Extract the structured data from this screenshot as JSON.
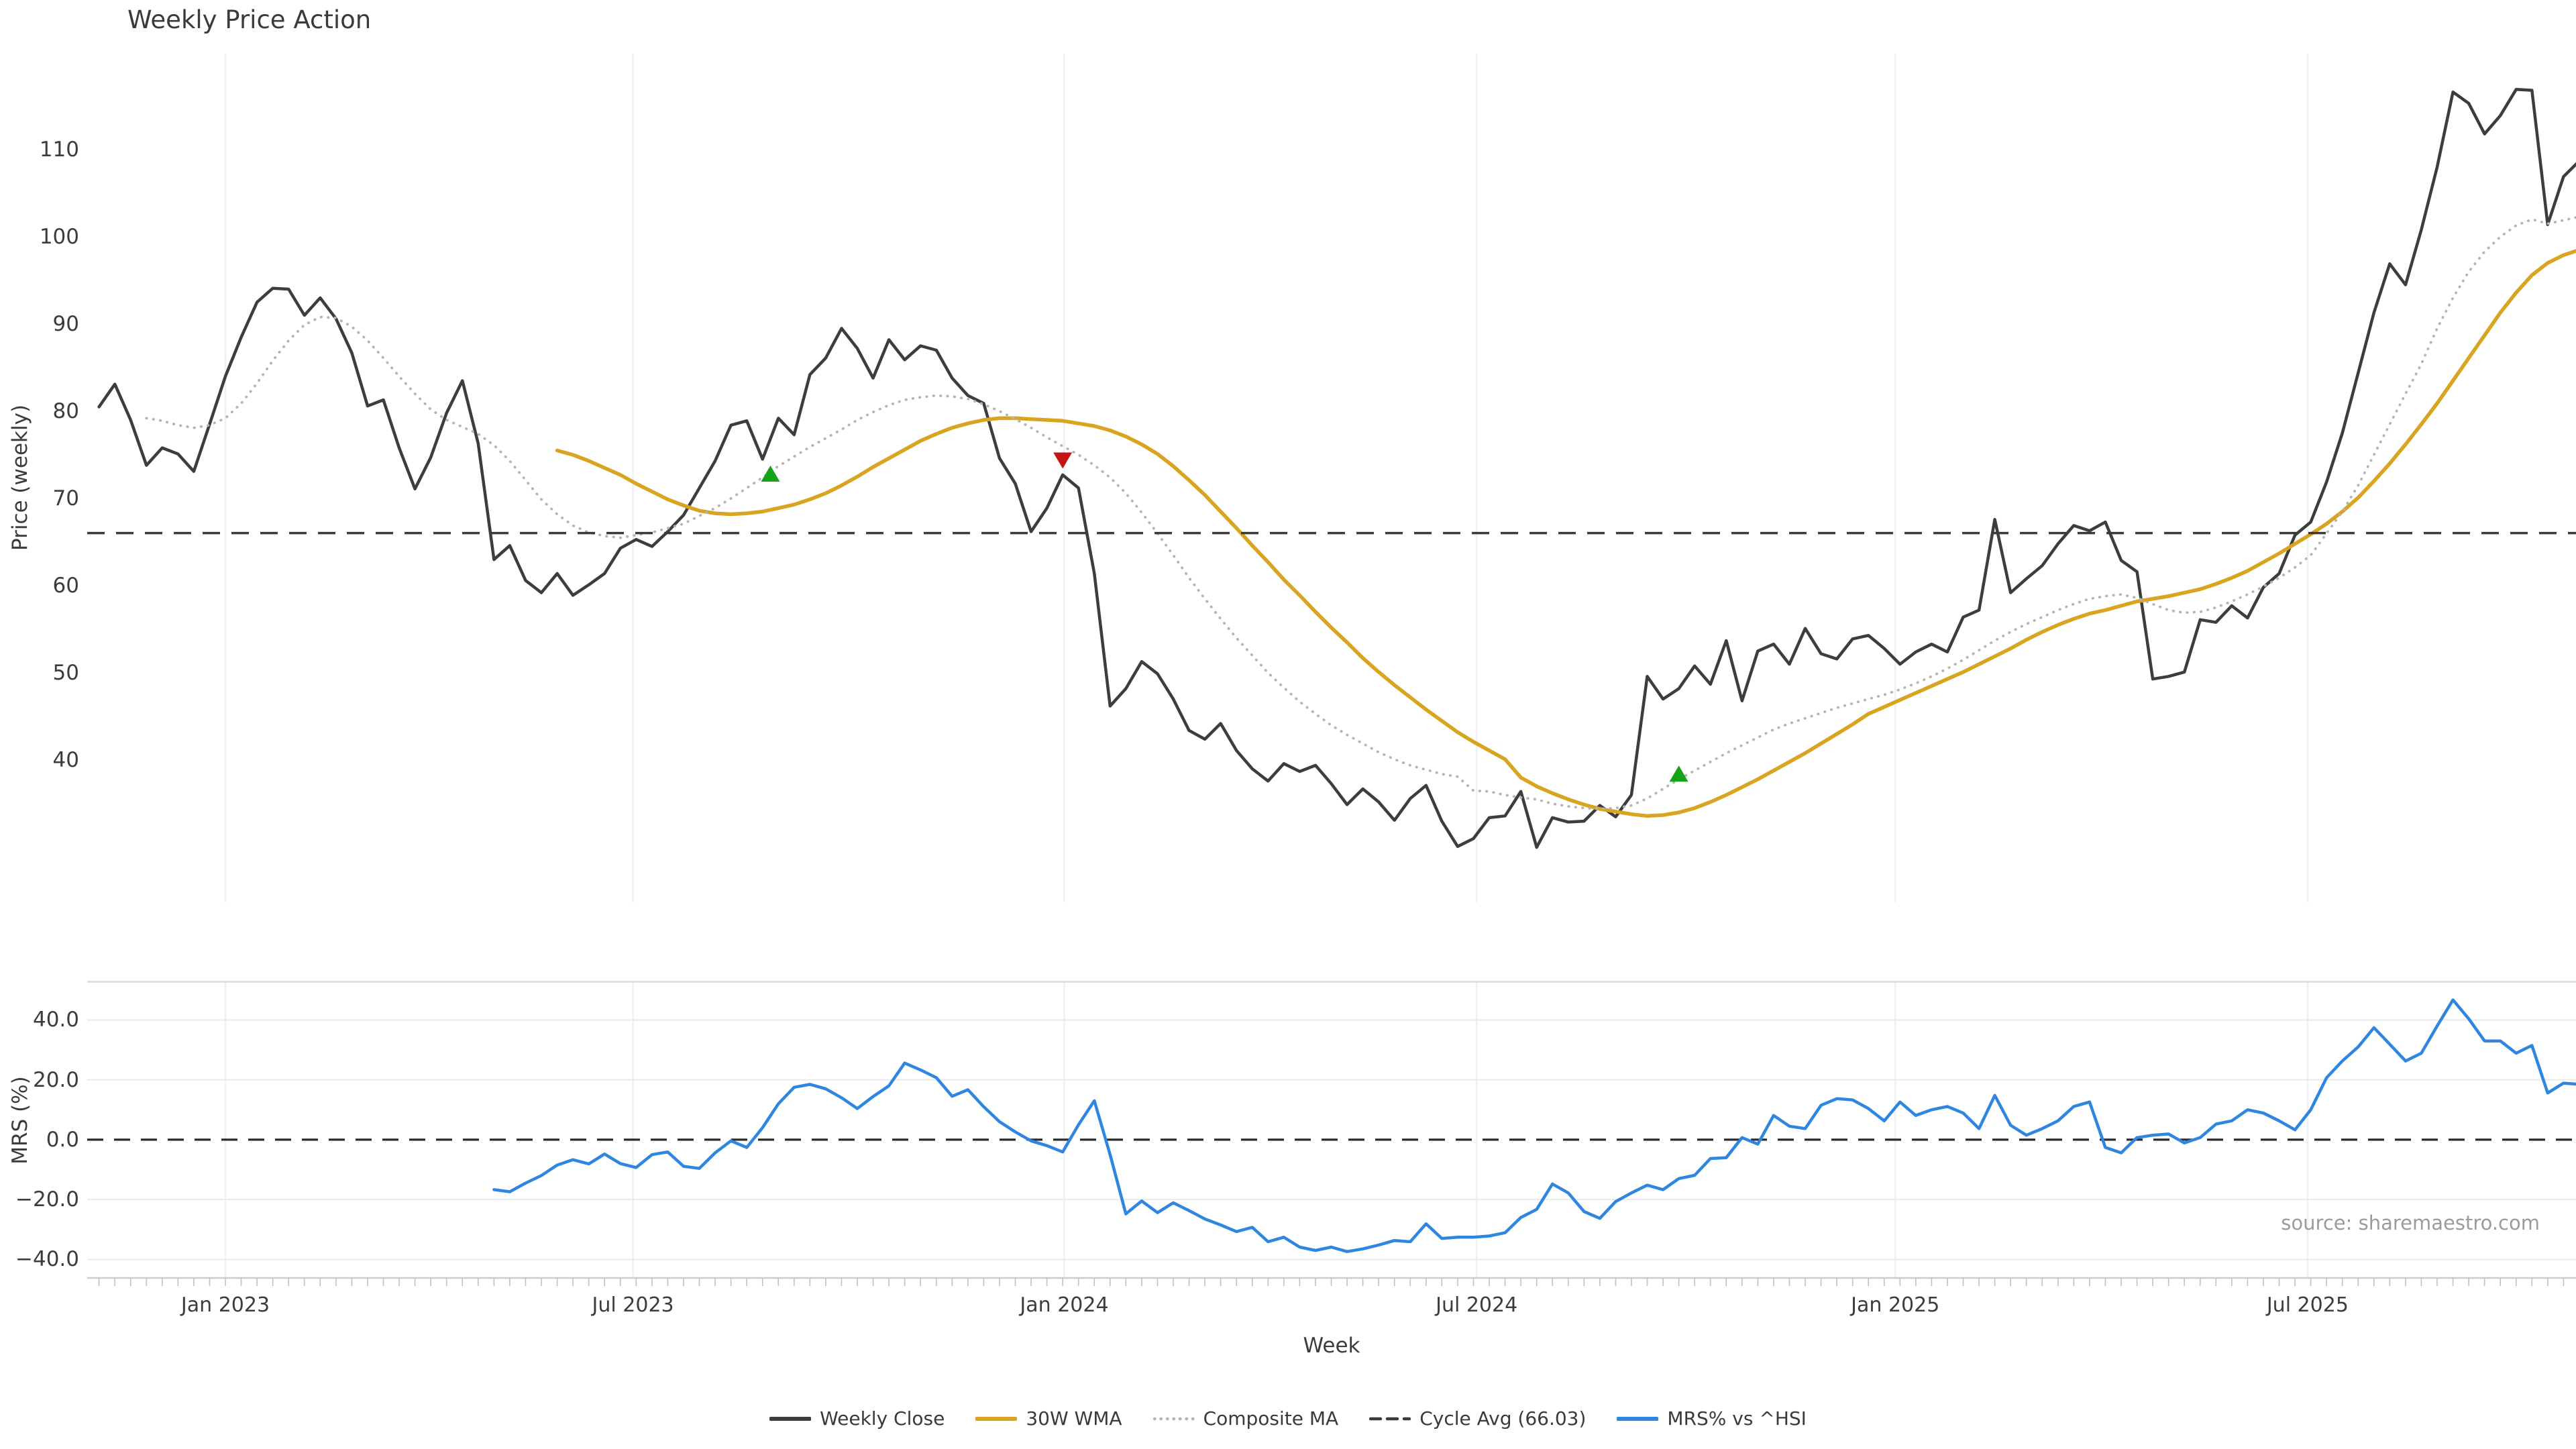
{
  "title": "Weekly Price Action",
  "source_text": "source: sharemaestro.com",
  "chart_data": {
    "type": "line",
    "title": "Weekly Price Action",
    "xlabel": "Week",
    "x_unit": "weekly",
    "x_start_date": "2022-11-07",
    "x_interval_days": 7,
    "n_weeks": 158,
    "grid": "vertical-light",
    "legend_position": "bottom-center",
    "xticks": [
      {
        "label": "Jan 2023",
        "index": 8.0
      },
      {
        "label": "Jul 2023",
        "index": 33.8
      },
      {
        "label": "Jan 2024",
        "index": 61.1
      },
      {
        "label": "Jul 2024",
        "index": 87.2
      },
      {
        "label": "Jan 2025",
        "index": 113.7
      },
      {
        "label": "Jul 2025",
        "index": 139.8
      }
    ],
    "panels": [
      {
        "ylabel": "Price (weekly)",
        "ylim": [
          23.7,
          121.0
        ],
        "yticks": [
          {
            "v": 110,
            "label": "110"
          },
          {
            "v": 100,
            "label": "100"
          },
          {
            "v": 90,
            "label": "90"
          },
          {
            "v": 80,
            "label": "80"
          },
          {
            "v": 70,
            "label": "70"
          },
          {
            "v": 60,
            "label": "60"
          },
          {
            "v": 50,
            "label": "50"
          },
          {
            "v": 40,
            "label": "40"
          }
        ],
        "ygrid": [],
        "series": [
          {
            "name": "Weekly Close",
            "color": "#3d3d3d",
            "line_style": "solid",
            "line_width": 4.5,
            "start_index": 0,
            "values": [
              80.5,
              83.1,
              79.0,
              73.8,
              75.8,
              75.1,
              73.1,
              78.5,
              84.0,
              88.5,
              92.5,
              94.1,
              94.0,
              91.0,
              93.0,
              90.6,
              86.7,
              80.6,
              81.3,
              75.8,
              71.1,
              74.7,
              79.8,
              83.5,
              76.3,
              63.0,
              64.6,
              60.6,
              59.2,
              61.4,
              58.9,
              60.1,
              61.4,
              64.3,
              65.3,
              64.5,
              66.2,
              68.1,
              71.2,
              74.3,
              78.4,
              78.9,
              74.5,
              79.2,
              77.3,
              84.2,
              86.1,
              89.5,
              87.2,
              83.8,
              88.2,
              85.9,
              87.5,
              87.0,
              83.8,
              81.8,
              80.9,
              74.6,
              71.7,
              66.2,
              68.9,
              72.7,
              71.2,
              61.4,
              46.2,
              48.2,
              51.3,
              49.9,
              47.0,
              43.4,
              42.4,
              44.2,
              41.1,
              39.0,
              37.6,
              39.6,
              38.7,
              39.4,
              37.3,
              34.9,
              36.7,
              35.2,
              33.1,
              35.6,
              37.1,
              33.0,
              30.1,
              31.0,
              33.4,
              33.6,
              36.4,
              30.0,
              33.4,
              32.9,
              33.0,
              34.8,
              33.5,
              36.0,
              49.6,
              47.0,
              48.2,
              50.8,
              48.7,
              53.7,
              46.8,
              52.5,
              53.3,
              51.0,
              55.1,
              52.2,
              51.6,
              53.9,
              54.3,
              52.8,
              51.0,
              52.4,
              53.3,
              52.4,
              56.4,
              57.2,
              67.6,
              59.2,
              60.8,
              62.3,
              64.8,
              66.9,
              66.3,
              67.3,
              62.9,
              61.6,
              49.3,
              49.6,
              50.1,
              56.1,
              55.8,
              57.7,
              56.3,
              59.8,
              61.4,
              65.8,
              67.3,
              71.9,
              77.5,
              84.4,
              91.3,
              96.9,
              94.5,
              100.8,
              108.0,
              116.6,
              115.3,
              111.8,
              113.9,
              116.9,
              116.8,
              101.4,
              106.9,
              108.7
            ]
          },
          {
            "name": "30W WMA",
            "color": "#d9a420",
            "line_style": "solid",
            "line_width": 5.5,
            "start_index": 29,
            "values": [
              75.5,
              75.0,
              74.3,
              73.5,
              72.7,
              71.7,
              70.8,
              69.9,
              69.2,
              68.6,
              68.3,
              68.2,
              68.3,
              68.5,
              68.9,
              69.3,
              69.9,
              70.6,
              71.5,
              72.5,
              73.6,
              74.6,
              75.6,
              76.6,
              77.4,
              78.1,
              78.6,
              79.0,
              79.2,
              79.2,
              79.1,
              79.0,
              78.9,
              78.6,
              78.3,
              77.8,
              77.1,
              76.2,
              75.1,
              73.7,
              72.1,
              70.4,
              68.5,
              66.6,
              64.6,
              62.7,
              60.7,
              58.9,
              57.0,
              55.2,
              53.5,
              51.7,
              50.1,
              48.6,
              47.2,
              45.8,
              44.5,
              43.2,
              42.1,
              41.1,
              40.1,
              38.0,
              37.0,
              36.2,
              35.5,
              34.9,
              34.4,
              34.1,
              33.8,
              33.6,
              33.7,
              34.0,
              34.5,
              35.2,
              36.0,
              36.9,
              37.8,
              38.8,
              39.8,
              40.8,
              41.9,
              43.0,
              44.1,
              45.3,
              46.1,
              46.9,
              47.7,
              48.5,
              49.3,
              50.1,
              51.0,
              51.9,
              52.8,
              53.8,
              54.7,
              55.5,
              56.2,
              56.8,
              57.2,
              57.7,
              58.2,
              58.5,
              58.8,
              59.2,
              59.6,
              60.2,
              60.9,
              61.7,
              62.7,
              63.7,
              64.8,
              65.9,
              67.1,
              68.5,
              70.1,
              72.0,
              74.0,
              76.2,
              78.5,
              80.9,
              83.5,
              86.1,
              88.7,
              91.3,
              93.6,
              95.6,
              97.0,
              97.9,
              98.5
            ]
          },
          {
            "name": "Composite MA",
            "color": "#b5b5b5",
            "line_style": "dotted",
            "line_width": 3.8,
            "start_index": 3,
            "values": [
              79.2,
              78.9,
              78.4,
              78.1,
              78.4,
              79.2,
              80.9,
              83.2,
              85.8,
              88.1,
              89.9,
              90.8,
              90.7,
              89.7,
              88.1,
              86.1,
              84.0,
              82.0,
              80.2,
              79.0,
              78.2,
              77.4,
              76.1,
              74.3,
              72.1,
              69.9,
              68.2,
              66.9,
              66.1,
              65.7,
              65.5,
              65.8,
              66.1,
              66.6,
              67.1,
              68.0,
              68.9,
              70.0,
              71.2,
              72.4,
              73.7,
              74.8,
              75.9,
              76.9,
              77.9,
              79.0,
              79.9,
              80.7,
              81.3,
              81.6,
              81.8,
              81.7,
              81.4,
              80.8,
              80.0,
              79.1,
              78.1,
              77.0,
              76.0,
              75.0,
              73.8,
              72.4,
              70.6,
              68.4,
              66.0,
              63.5,
              60.9,
              58.5,
              56.2,
              54.0,
              52.0,
              50.0,
              48.3,
              46.7,
              45.3,
              44.0,
              42.9,
              41.9,
              40.9,
              40.1,
              39.4,
              38.9,
              38.4,
              38.1,
              36.5,
              36.4,
              36.0,
              35.7,
              35.5,
              35.0,
              34.7,
              34.5,
              34.4,
              34.5,
              34.8,
              35.6,
              36.7,
              37.8,
              38.8,
              39.8,
              40.8,
              41.7,
              42.6,
              43.5,
              44.2,
              44.8,
              45.4,
              46.0,
              46.5,
              47.0,
              47.5,
              48.1,
              48.8,
              49.6,
              50.5,
              51.5,
              52.6,
              53.7,
              54.7,
              55.6,
              56.4,
              57.2,
              57.9,
              58.5,
              58.8,
              59.0,
              58.6,
              57.9,
              57.2,
              56.9,
              57.0,
              57.5,
              58.2,
              59.0,
              59.9,
              60.9,
              62.1,
              63.5,
              66.0,
              68.5,
              71.5,
              75.0,
              78.5,
              82.0,
              85.4,
              89.5,
              93.0,
              96.0,
              98.3,
              100.0,
              101.3,
              102.0,
              101.5,
              101.9,
              102.3
            ]
          },
          {
            "name": "Cycle Avg (66.03)",
            "color": "#3a3a3a",
            "line_style": "dashed",
            "line_width": 3.5,
            "constant": 66.03
          }
        ],
        "markers": [
          {
            "signal": "buy",
            "shape": "triangle-up",
            "color": "#17a317",
            "index": 42.5,
            "value": 72.7
          },
          {
            "signal": "sell",
            "shape": "triangle-down",
            "color": "#c41414",
            "index": 61.0,
            "value": 74.5
          },
          {
            "signal": "buy",
            "shape": "triangle-up",
            "color": "#17a317",
            "index": 100.0,
            "value": 38.3
          }
        ]
      },
      {
        "ylabel": "MRS (%)",
        "ylim": [
          -46.2,
          53.1
        ],
        "yticks": [
          {
            "v": 40,
            "label": "40.0"
          },
          {
            "v": 20,
            "label": "20.0"
          },
          {
            "v": 0,
            "label": "0.0"
          },
          {
            "v": -20,
            "label": "−20.0"
          },
          {
            "v": -40,
            "label": "−40.0"
          }
        ],
        "ygrid": [
          40,
          20,
          -20,
          -40
        ],
        "zero_line": {
          "value": 0.0,
          "style": "dashed",
          "color": "#2b2b2b"
        },
        "series": [
          {
            "name": "MRS% vs ^HSI",
            "color": "#2e86e0",
            "line_style": "solid",
            "line_width": 4.5,
            "start_index": 25,
            "values": [
              -16.7,
              -17.4,
              -14.5,
              -12.0,
              -8.5,
              -6.7,
              -8.1,
              -4.8,
              -8.0,
              -9.3,
              -5.0,
              -4.1,
              -8.9,
              -9.6,
              -4.4,
              -0.4,
              -2.6,
              4.0,
              12.0,
              17.5,
              18.5,
              17.0,
              14.0,
              10.4,
              14.4,
              18.0,
              25.6,
              23.3,
              20.7,
              14.5,
              16.7,
              11.0,
              6.0,
              2.6,
              -0.4,
              -2.0,
              -4.1,
              5.0,
              13.0,
              -5.0,
              -24.8,
              -20.5,
              -24.4,
              -21.1,
              -23.7,
              -26.5,
              -28.5,
              -30.7,
              -29.3,
              -34.1,
              -32.6,
              -35.9,
              -37.0,
              -35.9,
              -37.4,
              -36.5,
              -35.2,
              -33.7,
              -34.1,
              -28.1,
              -33.0,
              -32.6,
              -32.6,
              -32.2,
              -31.1,
              -26.0,
              -23.3,
              -14.8,
              -17.8,
              -24.0,
              -26.3,
              -20.7,
              -17.8,
              -15.2,
              -16.7,
              -13.0,
              -11.9,
              -6.3,
              -6.0,
              0.7,
              -1.5,
              8.1,
              4.5,
              3.7,
              11.5,
              13.7,
              13.3,
              10.4,
              6.3,
              12.6,
              8.1,
              10.0,
              11.1,
              8.9,
              3.7,
              14.8,
              4.8,
              1.5,
              3.7,
              6.3,
              11.1,
              12.6,
              -2.6,
              -4.4,
              0.7,
              1.5,
              1.9,
              -1.1,
              0.7,
              5.2,
              6.3,
              10.0,
              8.9,
              6.3,
              3.3,
              10.0,
              20.7,
              26.3,
              31.0,
              37.4,
              31.9,
              26.3,
              28.9,
              38.0,
              46.7,
              40.4,
              33.0,
              33.0,
              28.9,
              31.5,
              15.6,
              18.9,
              18.5
            ]
          }
        ]
      }
    ],
    "legend_entries": [
      "Weekly Close",
      "30W WMA",
      "Composite MA",
      "Cycle Avg (66.03)",
      "MRS% vs ^HSI"
    ]
  }
}
